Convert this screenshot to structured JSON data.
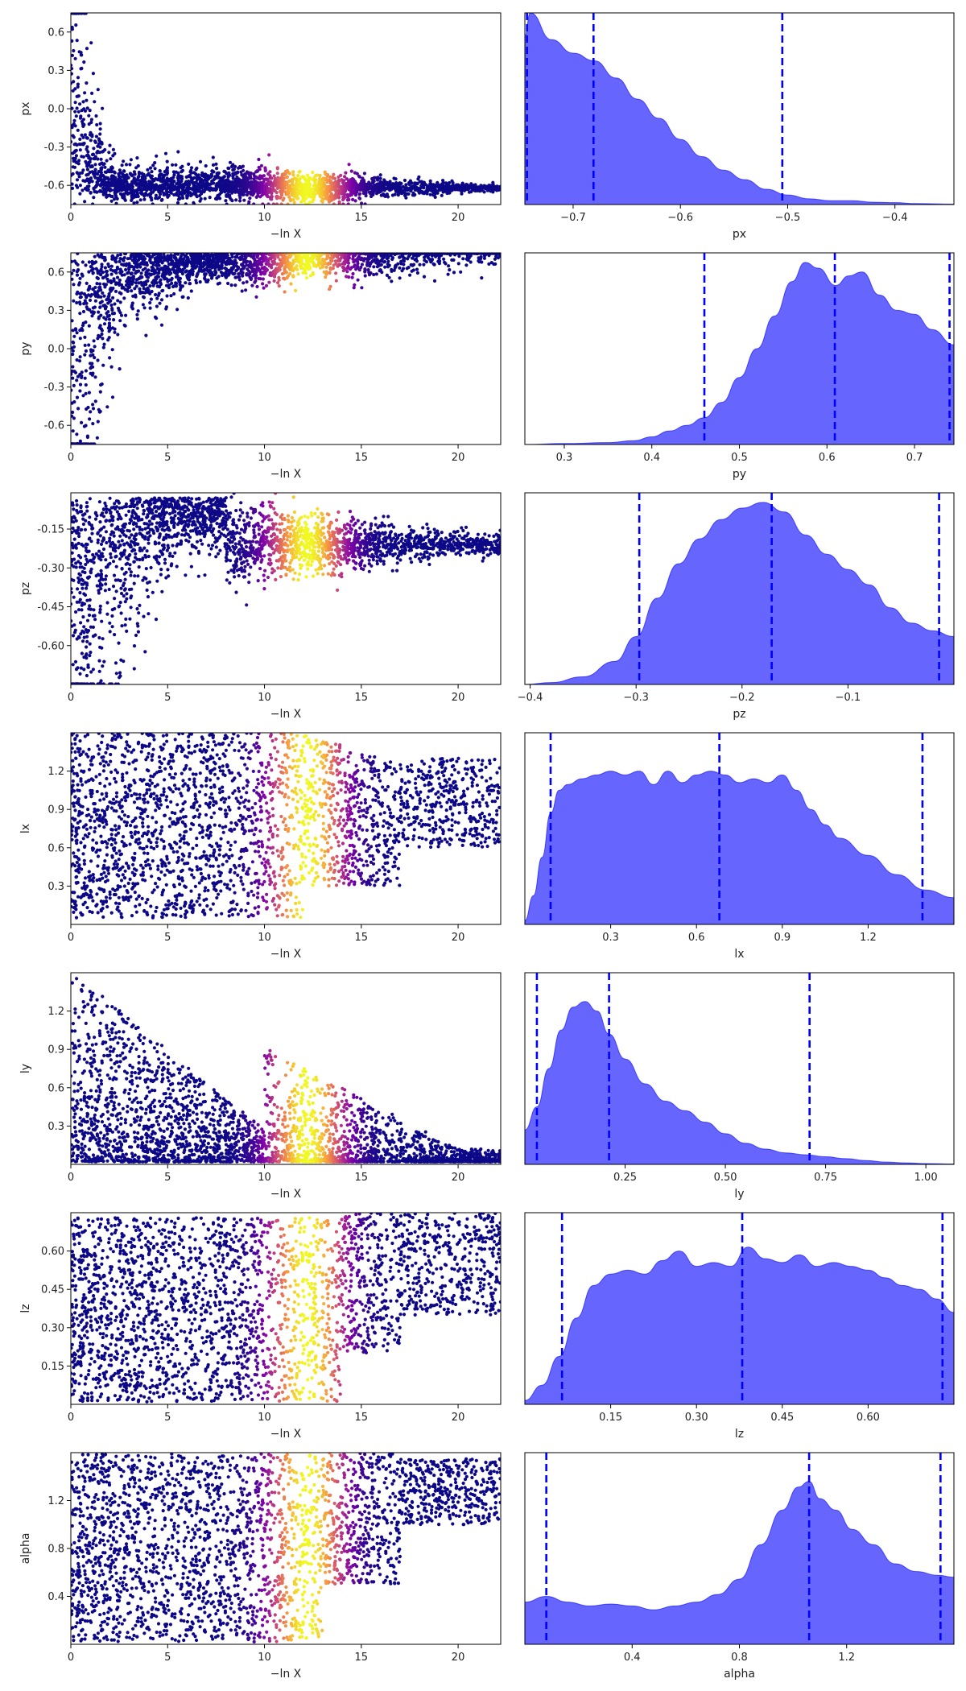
{
  "chart_data": [
    {
      "type": "scatter",
      "name": "trace-px",
      "xlabel": "−ln X",
      "ylabel": "px",
      "xlim": [
        0,
        22.2
      ],
      "ylim": [
        -0.75,
        0.75
      ],
      "xticks": [
        "0",
        "5",
        "10",
        "15",
        "20"
      ],
      "yticks": [
        "0.6",
        "0.3",
        "0.0",
        "-0.3",
        "-0.6"
      ],
      "colormap": [
        "#0d0887",
        "#7e03a8",
        "#cc4778",
        "#f89540",
        "#f0f921"
      ],
      "shape": "px"
    },
    {
      "type": "area",
      "name": "kde-px",
      "xlabel": "px",
      "xlim": [
        -0.745,
        -0.345
      ],
      "xticks": [
        "−0.7",
        "−0.6",
        "−0.5",
        "−0.4"
      ],
      "quantiles": [
        -0.743,
        -0.681,
        -0.505
      ],
      "x": [
        -0.745,
        -0.74,
        -0.72,
        -0.7,
        -0.68,
        -0.66,
        -0.64,
        -0.62,
        -0.6,
        -0.58,
        -0.56,
        -0.54,
        -0.52,
        -0.5,
        -0.48,
        -0.46,
        -0.44,
        -0.42,
        -0.4,
        -0.38,
        -0.345
      ],
      "density": [
        0.88,
        1.0,
        0.86,
        0.79,
        0.75,
        0.66,
        0.55,
        0.45,
        0.34,
        0.25,
        0.18,
        0.13,
        0.08,
        0.05,
        0.03,
        0.02,
        0.02,
        0.012,
        0.01,
        0.005,
        0.002
      ],
      "color": "#0000ff"
    },
    {
      "type": "scatter",
      "name": "trace-py",
      "xlabel": "−ln X",
      "ylabel": "py",
      "xlim": [
        0,
        22.2
      ],
      "ylim": [
        -0.75,
        0.75
      ],
      "xticks": [
        "0",
        "5",
        "10",
        "15",
        "20"
      ],
      "yticks": [
        "0.6",
        "0.3",
        "0.0",
        "-0.3",
        "-0.6"
      ],
      "colormap": [
        "#0d0887",
        "#7e03a8",
        "#cc4778",
        "#f89540",
        "#f0f921"
      ],
      "shape": "py"
    },
    {
      "type": "area",
      "name": "kde-py",
      "xlabel": "py",
      "xlim": [
        0.255,
        0.745
      ],
      "xticks": [
        "0.3",
        "0.4",
        "0.5",
        "0.6",
        "0.7"
      ],
      "quantiles": [
        0.46,
        0.609,
        0.74
      ],
      "x": [
        0.255,
        0.3,
        0.35,
        0.38,
        0.4,
        0.42,
        0.44,
        0.46,
        0.48,
        0.5,
        0.52,
        0.54,
        0.56,
        0.575,
        0.59,
        0.61,
        0.625,
        0.64,
        0.66,
        0.68,
        0.7,
        0.72,
        0.745
      ],
      "density": [
        0.0,
        0.005,
        0.01,
        0.02,
        0.04,
        0.07,
        0.1,
        0.14,
        0.22,
        0.35,
        0.5,
        0.67,
        0.85,
        0.95,
        0.92,
        0.83,
        0.88,
        0.9,
        0.78,
        0.7,
        0.68,
        0.6,
        0.52
      ],
      "color": "#0000ff"
    },
    {
      "type": "scatter",
      "name": "trace-pz",
      "xlabel": "−ln X",
      "ylabel": "pz",
      "xlim": [
        0,
        22.2
      ],
      "ylim": [
        -0.75,
        -0.01
      ],
      "xticks": [
        "0",
        "5",
        "10",
        "15",
        "20"
      ],
      "yticks": [
        "-0.15",
        "-0.30",
        "-0.45",
        "-0.60"
      ],
      "colormap": [
        "#0d0887",
        "#7e03a8",
        "#cc4778",
        "#f89540",
        "#f0f921"
      ],
      "shape": "pz"
    },
    {
      "type": "area",
      "name": "kde-pz",
      "xlabel": "pz",
      "xlim": [
        -0.405,
        0.0
      ],
      "xticks": [
        "−0.4",
        "−0.3",
        "−0.2",
        "−0.1"
      ],
      "quantiles": [
        -0.297,
        -0.172,
        -0.014
      ],
      "x": [
        -0.405,
        -0.38,
        -0.35,
        -0.32,
        -0.3,
        -0.28,
        -0.26,
        -0.24,
        -0.22,
        -0.2,
        -0.18,
        -0.16,
        -0.14,
        -0.12,
        -0.1,
        -0.08,
        -0.06,
        -0.04,
        -0.02,
        0.0
      ],
      "density": [
        0.0,
        0.01,
        0.04,
        0.12,
        0.25,
        0.45,
        0.63,
        0.76,
        0.86,
        0.92,
        0.95,
        0.9,
        0.78,
        0.68,
        0.6,
        0.52,
        0.4,
        0.32,
        0.28,
        0.25
      ],
      "color": "#0000ff"
    },
    {
      "type": "scatter",
      "name": "trace-lx",
      "xlabel": "−ln X",
      "ylabel": "lx",
      "xlim": [
        0,
        22.2
      ],
      "ylim": [
        0.0,
        1.5
      ],
      "xticks": [
        "0",
        "5",
        "10",
        "15",
        "20"
      ],
      "yticks": [
        "1.2",
        "0.9",
        "0.6",
        "0.3"
      ],
      "colormap": [
        "#0d0887",
        "#7e03a8",
        "#cc4778",
        "#f89540",
        "#f0f921"
      ],
      "shape": "lx"
    },
    {
      "type": "area",
      "name": "kde-lx",
      "xlabel": "lx",
      "xlim": [
        0.0,
        1.5
      ],
      "xticks": [
        "0.3",
        "0.6",
        "0.9",
        "1.2"
      ],
      "quantiles": [
        0.09,
        0.68,
        1.39
      ],
      "x": [
        0.0,
        0.03,
        0.06,
        0.09,
        0.12,
        0.15,
        0.2,
        0.25,
        0.3,
        0.35,
        0.4,
        0.45,
        0.5,
        0.55,
        0.6,
        0.65,
        0.7,
        0.75,
        0.8,
        0.85,
        0.9,
        0.95,
        1.0,
        1.05,
        1.1,
        1.2,
        1.3,
        1.4,
        1.5
      ],
      "density": [
        0.02,
        0.15,
        0.35,
        0.58,
        0.7,
        0.73,
        0.76,
        0.78,
        0.8,
        0.78,
        0.8,
        0.73,
        0.8,
        0.74,
        0.78,
        0.8,
        0.78,
        0.74,
        0.76,
        0.74,
        0.78,
        0.7,
        0.6,
        0.52,
        0.45,
        0.36,
        0.26,
        0.18,
        0.14
      ],
      "color": "#0000ff"
    },
    {
      "type": "scatter",
      "name": "trace-ly",
      "xlabel": "−ln X",
      "ylabel": "ly",
      "xlim": [
        0,
        22.2
      ],
      "ylim": [
        0.0,
        1.5
      ],
      "xticks": [
        "0",
        "5",
        "10",
        "15",
        "20"
      ],
      "yticks": [
        "1.2",
        "0.9",
        "0.6",
        "0.3"
      ],
      "colormap": [
        "#0d0887",
        "#7e03a8",
        "#cc4778",
        "#f89540",
        "#f0f921"
      ],
      "shape": "ly"
    },
    {
      "type": "area",
      "name": "kde-ly",
      "xlabel": "ly",
      "xlim": [
        0.0,
        1.07
      ],
      "xticks": [
        "0.25",
        "0.50",
        "0.75",
        "1.00"
      ],
      "quantiles": [
        0.03,
        0.21,
        0.71
      ],
      "x": [
        0.0,
        0.03,
        0.06,
        0.09,
        0.12,
        0.15,
        0.18,
        0.21,
        0.25,
        0.3,
        0.35,
        0.4,
        0.45,
        0.5,
        0.55,
        0.6,
        0.65,
        0.7,
        0.75,
        0.8,
        0.85,
        0.9,
        0.95,
        1.0,
        1.07
      ],
      "density": [
        0.18,
        0.3,
        0.5,
        0.7,
        0.82,
        0.85,
        0.8,
        0.68,
        0.55,
        0.42,
        0.33,
        0.28,
        0.22,
        0.16,
        0.11,
        0.08,
        0.06,
        0.05,
        0.04,
        0.03,
        0.02,
        0.012,
        0.008,
        0.004,
        0.002
      ],
      "color": "#0000ff"
    },
    {
      "type": "scatter",
      "name": "trace-lz",
      "xlabel": "−ln X",
      "ylabel": "lz",
      "xlim": [
        0,
        22.2
      ],
      "ylim": [
        0.0,
        0.75
      ],
      "xticks": [
        "0",
        "5",
        "10",
        "15",
        "20"
      ],
      "yticks": [
        "0.60",
        "0.45",
        "0.30",
        "0.15"
      ],
      "colormap": [
        "#0d0887",
        "#7e03a8",
        "#cc4778",
        "#f89540",
        "#f0f921"
      ],
      "shape": "lz"
    },
    {
      "type": "area",
      "name": "kde-lz",
      "xlabel": "lz",
      "xlim": [
        0.0,
        0.75
      ],
      "xticks": [
        "0.15",
        "0.30",
        "0.45",
        "0.60"
      ],
      "quantiles": [
        0.065,
        0.38,
        0.73
      ],
      "x": [
        0.0,
        0.03,
        0.06,
        0.09,
        0.12,
        0.15,
        0.18,
        0.21,
        0.24,
        0.27,
        0.3,
        0.33,
        0.36,
        0.39,
        0.42,
        0.45,
        0.48,
        0.51,
        0.54,
        0.57,
        0.6,
        0.63,
        0.66,
        0.69,
        0.72,
        0.75
      ],
      "density": [
        0.02,
        0.1,
        0.25,
        0.45,
        0.62,
        0.68,
        0.7,
        0.68,
        0.75,
        0.8,
        0.72,
        0.74,
        0.72,
        0.82,
        0.76,
        0.74,
        0.78,
        0.72,
        0.74,
        0.72,
        0.7,
        0.66,
        0.62,
        0.6,
        0.55,
        0.48
      ],
      "color": "#0000ff"
    },
    {
      "type": "scatter",
      "name": "trace-alpha",
      "xlabel": "−ln X",
      "ylabel": "alpha",
      "xlim": [
        0,
        22.2
      ],
      "ylim": [
        0.0,
        1.6
      ],
      "xticks": [
        "0",
        "5",
        "10",
        "15",
        "20"
      ],
      "yticks": [
        "1.2",
        "0.8",
        "0.4"
      ],
      "colormap": [
        "#0d0887",
        "#7e03a8",
        "#cc4778",
        "#f89540",
        "#f0f921"
      ],
      "shape": "alpha"
    },
    {
      "type": "area",
      "name": "kde-alpha",
      "xlabel": "alpha",
      "xlim": [
        0.0,
        1.6
      ],
      "xticks": [
        "0.4",
        "0.8",
        "1.2"
      ],
      "quantiles": [
        0.08,
        1.06,
        1.55
      ],
      "x": [
        0.0,
        0.08,
        0.16,
        0.24,
        0.32,
        0.4,
        0.48,
        0.56,
        0.64,
        0.72,
        0.8,
        0.88,
        0.96,
        1.02,
        1.06,
        1.1,
        1.16,
        1.22,
        1.3,
        1.38,
        1.46,
        1.54,
        1.6
      ],
      "density": [
        0.22,
        0.25,
        0.22,
        0.2,
        0.21,
        0.2,
        0.18,
        0.2,
        0.22,
        0.26,
        0.34,
        0.52,
        0.7,
        0.82,
        0.85,
        0.76,
        0.7,
        0.6,
        0.52,
        0.42,
        0.38,
        0.36,
        0.35
      ],
      "color": "#0000ff"
    }
  ]
}
